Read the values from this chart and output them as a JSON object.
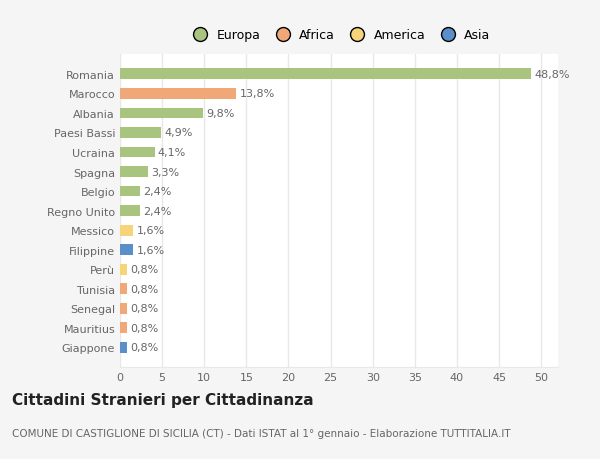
{
  "countries": [
    "Romania",
    "Marocco",
    "Albania",
    "Paesi Bassi",
    "Ucraina",
    "Spagna",
    "Belgio",
    "Regno Unito",
    "Messico",
    "Filippine",
    "Perù",
    "Tunisia",
    "Senegal",
    "Mauritius",
    "Giappone"
  ],
  "values": [
    48.8,
    13.8,
    9.8,
    4.9,
    4.1,
    3.3,
    2.4,
    2.4,
    1.6,
    1.6,
    0.8,
    0.8,
    0.8,
    0.8,
    0.8
  ],
  "labels": [
    "48,8%",
    "13,8%",
    "9,8%",
    "4,9%",
    "4,1%",
    "3,3%",
    "2,4%",
    "2,4%",
    "1,6%",
    "1,6%",
    "0,8%",
    "0,8%",
    "0,8%",
    "0,8%",
    "0,8%"
  ],
  "bar_colors": [
    "#a8c47e",
    "#f0a878",
    "#a8c47e",
    "#a8c47e",
    "#a8c47e",
    "#a8c47e",
    "#a8c47e",
    "#a8c47e",
    "#f5d47a",
    "#5b8fc9",
    "#f5d47a",
    "#f0a878",
    "#f0a878",
    "#f0a878",
    "#5b8fc9"
  ],
  "legend_labels": [
    "Europa",
    "Africa",
    "America",
    "Asia"
  ],
  "legend_colors": [
    "#a8c47e",
    "#f0a878",
    "#f5d47a",
    "#5b8fc9"
  ],
  "title": "Cittadini Stranieri per Cittadinanza",
  "subtitle": "COMUNE DI CASTIGLIONE DI SICILIA (CT) - Dati ISTAT al 1° gennaio - Elaborazione TUTTITALIA.IT",
  "xlim": [
    0,
    52
  ],
  "xticks": [
    0,
    5,
    10,
    15,
    20,
    25,
    30,
    35,
    40,
    45,
    50
  ],
  "plot_bg": "#ffffff",
  "fig_bg": "#f5f5f5",
  "grid_color": "#e8e8e8",
  "bar_height": 0.55,
  "title_fontsize": 11,
  "subtitle_fontsize": 7.5,
  "tick_fontsize": 8,
  "label_fontsize": 8,
  "legend_fontsize": 9
}
